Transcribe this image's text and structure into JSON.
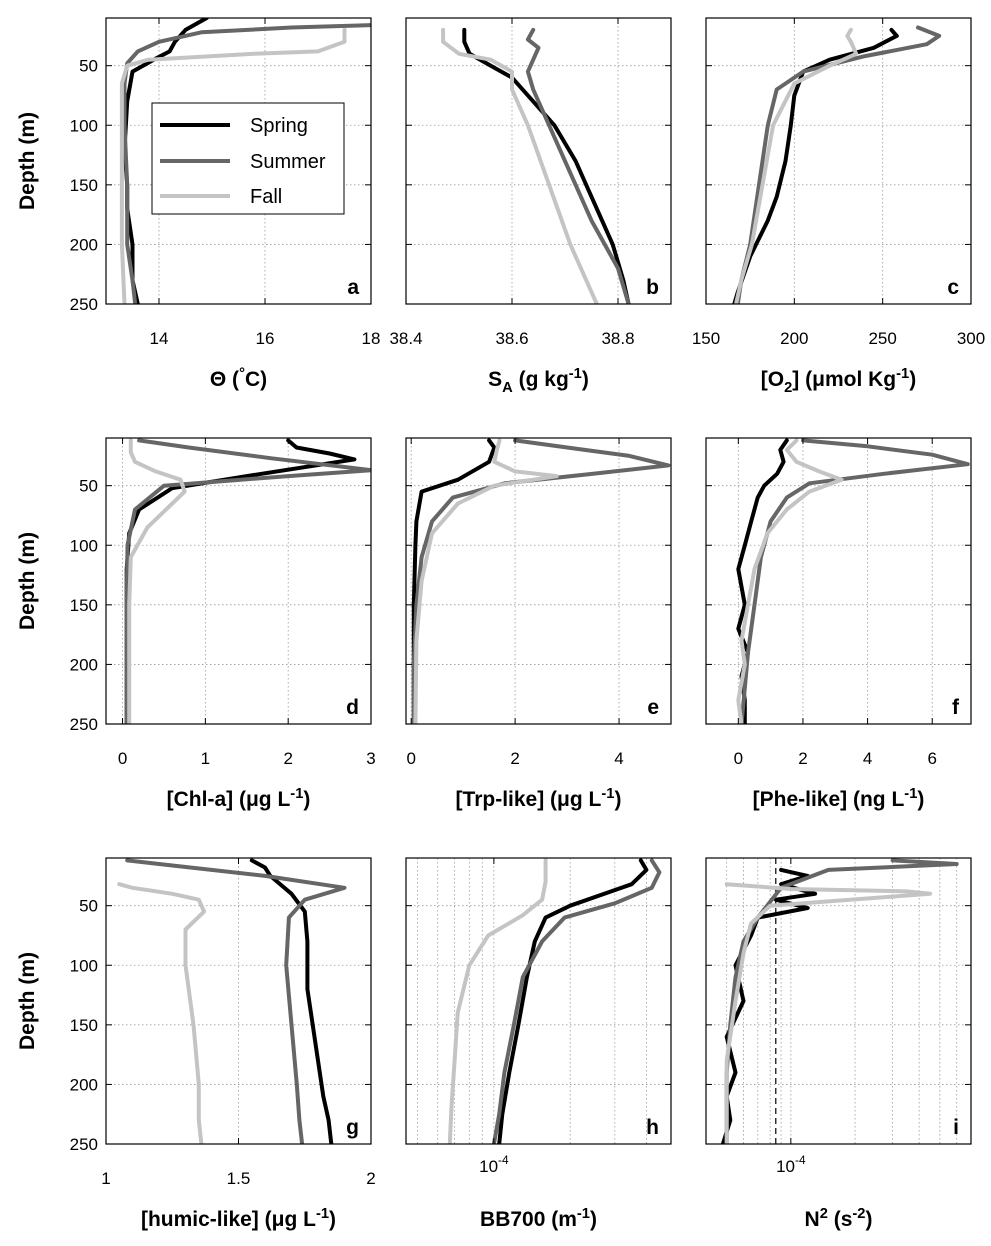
{
  "colors": {
    "spring": "#000000",
    "summer": "#666666",
    "fall": "#c4c4c4"
  },
  "legend": {
    "items": [
      "Spring",
      "Summer",
      "Fall"
    ],
    "placement": "inside panel a, center"
  },
  "chart_data": [
    {
      "panel": "a",
      "type": "line",
      "xlabel": "Θ (°C)",
      "ylabel": "Depth (m)",
      "xlim": [
        13,
        18
      ],
      "ylim": [
        250,
        10
      ],
      "xticks": [
        14,
        16,
        18
      ],
      "xtick_labels": [
        "14",
        "16",
        "18"
      ],
      "yticks": [
        50,
        100,
        150,
        200,
        250
      ],
      "ytick_labels": [
        "50",
        "100",
        "150",
        "200",
        "250"
      ],
      "grid": true,
      "xscale": "linear",
      "series": [
        {
          "name": "Spring",
          "x": [
            14.9,
            14.5,
            14.3,
            14.2,
            13.9,
            13.5,
            13.4,
            13.35,
            13.4,
            13.4,
            13.5,
            13.5,
            13.6
          ],
          "y": [
            10,
            20,
            30,
            38,
            45,
            55,
            80,
            120,
            150,
            170,
            200,
            230,
            250
          ]
        },
        {
          "name": "Summer",
          "x": [
            18,
            16.5,
            14.8,
            14.0,
            13.6,
            13.4,
            13.35,
            13.35,
            13.4,
            13.4,
            13.5,
            13.55
          ],
          "y": [
            16,
            18,
            22,
            30,
            38,
            48,
            65,
            100,
            150,
            200,
            230,
            250
          ]
        },
        {
          "name": "Fall",
          "x": [
            17.5,
            17.5,
            17.0,
            15.8,
            13.8,
            13.4,
            13.3,
            13.3,
            13.3,
            13.3,
            13.35
          ],
          "y": [
            20,
            30,
            38,
            40,
            45,
            50,
            65,
            100,
            150,
            200,
            250
          ]
        }
      ]
    },
    {
      "panel": "b",
      "type": "line",
      "xlabel": "S_A (g kg-1)",
      "xlim": [
        38.4,
        38.9
      ],
      "ylim": [
        250,
        10
      ],
      "xticks": [
        38.4,
        38.6,
        38.8
      ],
      "xtick_labels": [
        "38.4",
        "38.6",
        "38.8"
      ],
      "grid": true,
      "xscale": "linear",
      "series": [
        {
          "name": "Spring",
          "x": [
            38.51,
            38.51,
            38.52,
            38.56,
            38.6,
            38.64,
            38.68,
            38.72,
            38.75,
            38.79,
            38.81,
            38.82
          ],
          "y": [
            20,
            30,
            40,
            50,
            60,
            80,
            100,
            130,
            160,
            200,
            230,
            250
          ]
        },
        {
          "name": "Summer",
          "x": [
            38.64,
            38.63,
            38.65,
            38.64,
            38.63,
            38.64,
            38.67,
            38.71,
            38.75,
            38.8,
            38.82
          ],
          "y": [
            20,
            28,
            35,
            45,
            55,
            70,
            100,
            140,
            180,
            220,
            250
          ]
        },
        {
          "name": "Fall",
          "x": [
            38.47,
            38.47,
            38.5,
            38.56,
            38.6,
            38.6,
            38.63,
            38.67,
            38.71,
            38.74,
            38.76
          ],
          "y": [
            20,
            30,
            40,
            45,
            55,
            70,
            100,
            150,
            200,
            230,
            250
          ]
        }
      ]
    },
    {
      "panel": "c",
      "type": "line",
      "xlabel": "[O2] (μmol Kg-1)",
      "xlim": [
        150,
        300
      ],
      "ylim": [
        250,
        10
      ],
      "xticks": [
        150,
        200,
        250,
        300
      ],
      "xtick_labels": [
        "150",
        "200",
        "250",
        "300"
      ],
      "grid": true,
      "xscale": "linear",
      "series": [
        {
          "name": "Spring",
          "x": [
            255,
            258,
            245,
            220,
            205,
            200,
            198,
            195,
            190,
            185,
            175,
            168,
            166
          ],
          "y": [
            20,
            25,
            35,
            45,
            55,
            75,
            100,
            130,
            160,
            180,
            210,
            240,
            250
          ]
        },
        {
          "name": "Summer",
          "x": [
            270,
            282,
            275,
            240,
            205,
            190,
            185,
            180,
            175,
            170,
            168
          ],
          "y": [
            18,
            25,
            32,
            42,
            55,
            70,
            100,
            150,
            200,
            230,
            250
          ]
        },
        {
          "name": "Fall",
          "x": [
            232,
            230,
            232,
            235,
            220,
            200,
            188,
            182,
            176,
            170,
            167
          ],
          "y": [
            20,
            25,
            30,
            40,
            50,
            65,
            100,
            150,
            200,
            230,
            250
          ]
        }
      ]
    },
    {
      "panel": "d",
      "type": "line",
      "xlabel": "[Chl-a] (μg L-1)",
      "ylabel": "Depth (m)",
      "xlim": [
        -0.2,
        3
      ],
      "ylim": [
        250,
        10
      ],
      "xticks": [
        0,
        1,
        2,
        3
      ],
      "xtick_labels": [
        "0",
        "1",
        "2",
        "3"
      ],
      "yticks": [
        50,
        100,
        150,
        200,
        250
      ],
      "ytick_labels": [
        "50",
        "100",
        "150",
        "200",
        "250"
      ],
      "grid": true,
      "xscale": "linear",
      "series": [
        {
          "name": "Spring",
          "x": [
            2.0,
            2.1,
            2.5,
            2.8,
            1.5,
            0.6,
            0.2,
            0.08,
            0.05,
            0.05,
            0.05,
            0.05,
            0.05
          ],
          "y": [
            12,
            18,
            23,
            28,
            42,
            52,
            70,
            90,
            120,
            150,
            200,
            230,
            250
          ]
        },
        {
          "name": "Summer",
          "x": [
            0.2,
            0.8,
            1.8,
            3.0,
            2.0,
            0.5,
            0.15,
            0.06,
            0.05,
            0.05,
            0.05
          ],
          "y": [
            12,
            18,
            27,
            37,
            42,
            50,
            70,
            100,
            150,
            200,
            250
          ]
        },
        {
          "name": "Fall",
          "x": [
            0.1,
            0.1,
            0.15,
            0.4,
            0.7,
            0.75,
            0.6,
            0.3,
            0.1,
            0.08,
            0.08,
            0.08
          ],
          "y": [
            12,
            22,
            30,
            38,
            45,
            55,
            65,
            85,
            110,
            150,
            200,
            250
          ]
        }
      ]
    },
    {
      "panel": "e",
      "type": "line",
      "xlabel": "[Trp-like] (μg L-1)",
      "xlim": [
        -0.1,
        5
      ],
      "ylim": [
        250,
        10
      ],
      "xticks": [
        0,
        2,
        4
      ],
      "xtick_labels": [
        "0",
        "2",
        "4"
      ],
      "grid": true,
      "xscale": "linear",
      "series": [
        {
          "name": "Spring",
          "x": [
            1.5,
            1.6,
            1.5,
            0.9,
            0.2,
            0.1,
            0.08,
            0.05,
            0.05,
            0.05
          ],
          "y": [
            12,
            18,
            30,
            45,
            55,
            80,
            100,
            150,
            200,
            250
          ]
        },
        {
          "name": "Summer",
          "x": [
            2.0,
            3.0,
            4.2,
            4.95,
            3.5,
            1.8,
            0.8,
            0.4,
            0.2,
            0.1,
            0.05,
            0.05
          ],
          "y": [
            12,
            18,
            25,
            33,
            40,
            48,
            60,
            80,
            110,
            150,
            200,
            250
          ]
        },
        {
          "name": "Fall",
          "x": [
            1.7,
            1.65,
            1.6,
            2.0,
            2.8,
            1.6,
            0.9,
            0.4,
            0.2,
            0.1,
            0.08
          ],
          "y": [
            12,
            20,
            30,
            38,
            42,
            50,
            65,
            90,
            130,
            180,
            250
          ]
        }
      ]
    },
    {
      "panel": "f",
      "type": "line",
      "xlabel": "[Phe-like] (ng L-1)",
      "xlim": [
        -1,
        7.2
      ],
      "ylim": [
        250,
        10
      ],
      "xticks": [
        0,
        2,
        4,
        6
      ],
      "xtick_labels": [
        "0",
        "2",
        "4",
        "6"
      ],
      "grid": true,
      "xscale": "linear",
      "series": [
        {
          "name": "Spring",
          "x": [
            1.5,
            1.3,
            1.4,
            1.2,
            0.8,
            0.6,
            0.4,
            0.2,
            0.0,
            0.2,
            0.0,
            0.3,
            0.1,
            0.2,
            0.2
          ],
          "y": [
            12,
            20,
            30,
            40,
            50,
            60,
            80,
            100,
            120,
            150,
            170,
            190,
            210,
            230,
            250
          ]
        },
        {
          "name": "Summer",
          "x": [
            2.0,
            4.0,
            6.0,
            7.1,
            4.5,
            2.2,
            1.5,
            1.0,
            0.7,
            0.5,
            0.3,
            0.2,
            0.1
          ],
          "y": [
            12,
            17,
            24,
            32,
            40,
            48,
            60,
            80,
            110,
            150,
            190,
            220,
            250
          ]
        },
        {
          "name": "Fall",
          "x": [
            1.8,
            1.5,
            1.8,
            2.5,
            3.2,
            2.2,
            1.5,
            0.9,
            0.5,
            0.3,
            0.1,
            0.2,
            0.0,
            0.1
          ],
          "y": [
            12,
            20,
            30,
            38,
            45,
            55,
            70,
            90,
            120,
            150,
            180,
            200,
            230,
            250
          ]
        }
      ]
    },
    {
      "panel": "g",
      "type": "line",
      "xlabel": "[humic-like] (μg L-1)",
      "ylabel": "Depth (m)",
      "xlim": [
        1,
        2
      ],
      "ylim": [
        250,
        10
      ],
      "xticks": [
        1,
        1.5,
        2
      ],
      "xtick_labels": [
        "1",
        "1.5",
        "2"
      ],
      "yticks": [
        50,
        100,
        150,
        200,
        250
      ],
      "ytick_labels": [
        "50",
        "100",
        "150",
        "200",
        "250"
      ],
      "grid": true,
      "xscale": "linear",
      "series": [
        {
          "name": "Spring",
          "x": [
            1.55,
            1.6,
            1.62,
            1.7,
            1.75,
            1.76,
            1.76,
            1.78,
            1.8,
            1.82,
            1.84,
            1.85
          ],
          "y": [
            12,
            18,
            25,
            40,
            55,
            80,
            120,
            150,
            180,
            210,
            230,
            250
          ]
        },
        {
          "name": "Summer",
          "x": [
            1.08,
            1.2,
            1.6,
            1.9,
            1.75,
            1.69,
            1.68,
            1.7,
            1.72,
            1.73,
            1.74
          ],
          "y": [
            12,
            15,
            25,
            35,
            45,
            60,
            100,
            150,
            200,
            230,
            250
          ]
        },
        {
          "name": "Fall",
          "x": [
            1.05,
            1.1,
            1.25,
            1.35,
            1.37,
            1.3,
            1.3,
            1.33,
            1.35,
            1.35,
            1.36
          ],
          "y": [
            32,
            35,
            40,
            45,
            55,
            70,
            100,
            150,
            200,
            230,
            250
          ]
        }
      ]
    },
    {
      "panel": "h",
      "type": "line",
      "xlabel": "BB700 (m-1)",
      "xlim": [
        4.5e-05,
        0.0005
      ],
      "ylim": [
        250,
        10
      ],
      "xticks": [
        0.0001
      ],
      "xtick_labels": [
        "10-4"
      ],
      "grid": true,
      "xscale": "log",
      "series": [
        {
          "name": "Spring",
          "x": [
            0.00038,
            0.0004,
            0.00035,
            0.0002,
            0.00016,
            0.000145,
            0.000135,
            0.000125,
            0.000115,
            0.000108,
            0.000105
          ],
          "y": [
            12,
            20,
            32,
            50,
            60,
            80,
            110,
            150,
            190,
            225,
            250
          ]
        },
        {
          "name": "Summer",
          "x": [
            0.00042,
            0.00045,
            0.00042,
            0.0003,
            0.00019,
            0.000155,
            0.00013,
            0.00012,
            0.00011,
            0.000105,
            0.0001
          ],
          "y": [
            12,
            22,
            35,
            48,
            60,
            80,
            110,
            150,
            190,
            225,
            250
          ]
        },
        {
          "name": "Fall",
          "x": [
            0.00016,
            0.00016,
            0.000155,
            0.00013,
            9.5e-05,
            8e-05,
            7.2e-05,
            7e-05,
            6.8e-05,
            6.7e-05
          ],
          "y": [
            12,
            30,
            45,
            58,
            75,
            100,
            140,
            180,
            220,
            250
          ]
        }
      ]
    },
    {
      "panel": "i",
      "type": "line",
      "xlabel": "N2 (s-2)",
      "xlim": [
        4e-05,
        0.0007
      ],
      "ylim": [
        250,
        10
      ],
      "xticks": [
        0.0001
      ],
      "xtick_labels": [
        "10-4"
      ],
      "grid": true,
      "xscale": "log",
      "reference_line_x": 8.5e-05,
      "series": [
        {
          "name": "Spring",
          "x": [
            9e-05,
            0.00012,
            9e-05,
            0.00013,
            8.5e-05,
            0.00012,
            7e-05,
            6.5e-05,
            5.5e-05,
            6e-05,
            5e-05,
            5.5e-05,
            5e-05,
            5.2e-05,
            4.8e-05
          ],
          "y": [
            20,
            25,
            32,
            40,
            45,
            52,
            60,
            75,
            100,
            130,
            160,
            190,
            210,
            230,
            250
          ]
        },
        {
          "name": "Summer",
          "x": [
            0.0003,
            0.0006,
            0.00015,
            9e-05,
            7e-05,
            6e-05,
            5.5e-05,
            5.2e-05,
            5e-05,
            5e-05,
            5e-05
          ],
          "y": [
            12,
            15,
            20,
            35,
            60,
            80,
            110,
            150,
            190,
            220,
            250
          ]
        },
        {
          "name": "Fall",
          "x": [
            5e-05,
            0.0001,
            0.00035,
            0.00045,
            8e-05,
            6.5e-05,
            6e-05,
            5.5e-05,
            5e-05,
            5e-05
          ],
          "y": [
            32,
            36,
            38,
            40,
            50,
            65,
            90,
            130,
            180,
            250
          ]
        }
      ]
    }
  ]
}
